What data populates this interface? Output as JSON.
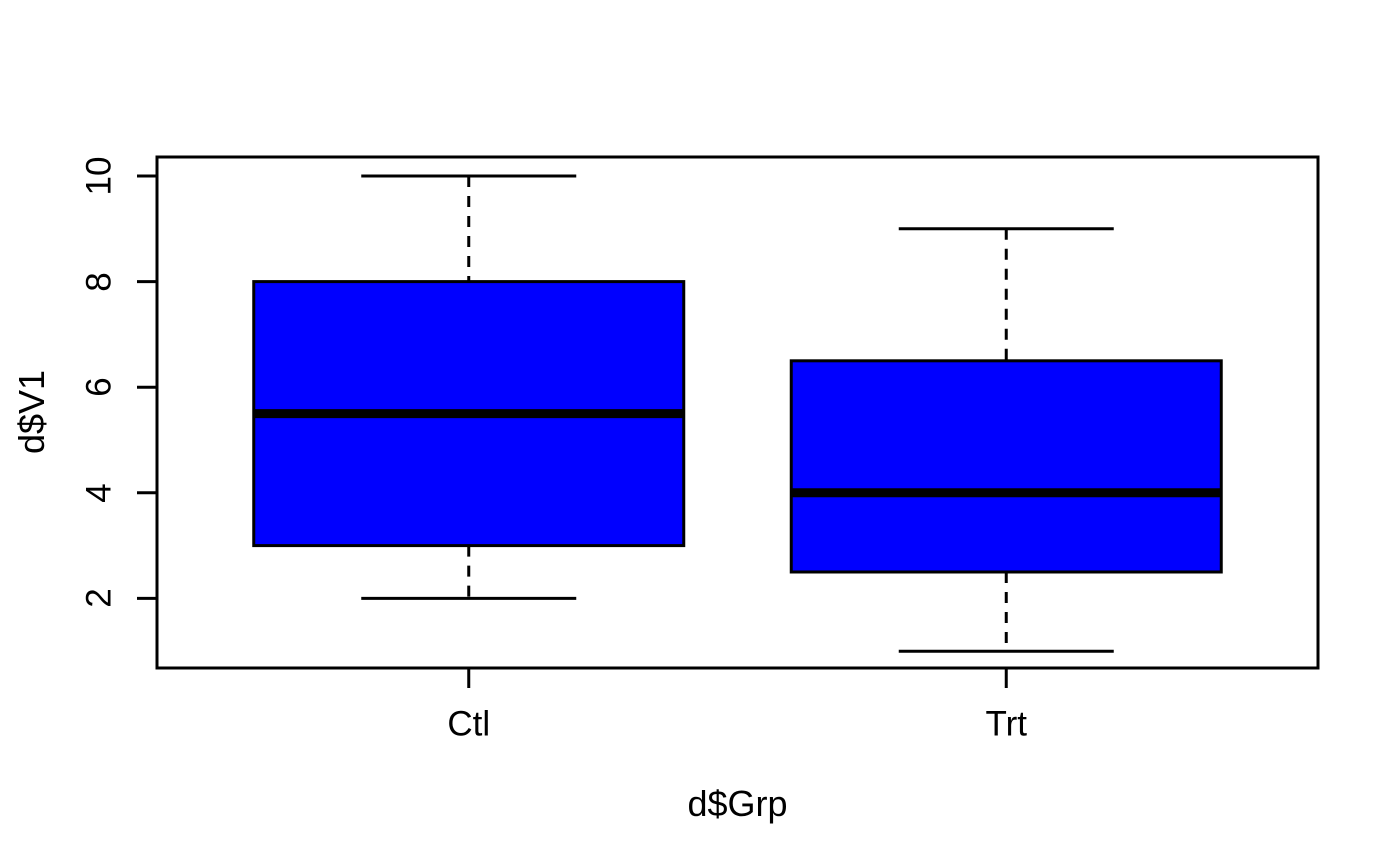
{
  "chart_data": {
    "type": "boxplot",
    "title": "",
    "xlabel": "d$Grp",
    "ylabel": "d$V1",
    "categories": [
      "Ctl",
      "Trt"
    ],
    "series": [
      {
        "name": "Ctl",
        "min": 2,
        "q1": 3,
        "median": 5.5,
        "q3": 8,
        "max": 10
      },
      {
        "name": "Trt",
        "min": 1,
        "q1": 2.5,
        "median": 4,
        "q3": 6.5,
        "max": 9
      }
    ],
    "yticks": [
      2,
      4,
      6,
      8,
      10
    ],
    "ylim": [
      0.64,
      10.36
    ],
    "xlim": [
      0.42,
      2.58
    ],
    "grid": "off",
    "legend": "none",
    "whisker_line_style": "dashed",
    "box_fill_color": "#0000FF",
    "line_color": "#000000",
    "background_color": "#FFFFFF"
  }
}
